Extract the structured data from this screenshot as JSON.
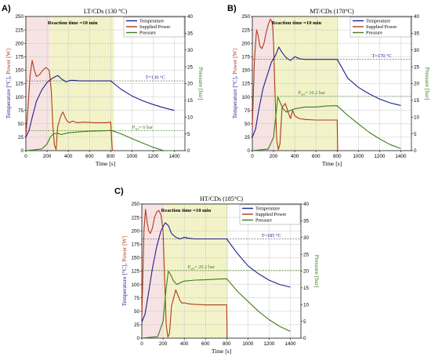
{
  "figure": {
    "panels": [
      "A)",
      "B)",
      "C)"
    ]
  },
  "chart_data": [
    {
      "id": "A",
      "type": "line",
      "title": "LT/CDs (130 °C)",
      "xlabel": "Time [s]",
      "ylabel_left": {
        "t1": "Temperature [°C], ",
        "t2": "Power [W]"
      },
      "ylabel_right": "Pressure [bar]",
      "xlim": [
        0,
        1500
      ],
      "ylim_left": [
        0,
        250
      ],
      "ylim_right": [
        0,
        40
      ],
      "xticks": [
        "0",
        "200",
        "400",
        "600",
        "800",
        "1000",
        "1200",
        "1400"
      ],
      "yticks_left": [
        "0",
        "25",
        "50",
        "75",
        "100",
        "125",
        "150",
        "175",
        "200",
        "225",
        "250"
      ],
      "yticks_right": [
        "0",
        "5",
        "10",
        "15",
        "20",
        "25",
        "30",
        "35",
        "40"
      ],
      "grid": true,
      "reaction_window": {
        "label": "Reaction time =10 min",
        "x": [
          230,
          830
        ]
      },
      "ramp_window": [
        0,
        230
      ],
      "setpoint_temperature": {
        "label": "T=130 °C",
        "value": 130
      },
      "setpoint_pressure": {
        "label_p": "P",
        "label_sub": "set",
        "label_val": "= 6 bar",
        "value_bar": 6
      },
      "legend": {
        "placement": "top-right",
        "items": [
          "Temperature",
          "Supplied Power",
          "Pressure"
        ]
      },
      "series": [
        {
          "name": "Temperature",
          "color": "#1f1f8f",
          "axis": "left",
          "x": [
            0,
            30,
            60,
            100,
            150,
            200,
            250,
            300,
            340,
            380,
            420,
            460,
            500,
            600,
            700,
            800,
            900,
            1000,
            1100,
            1200,
            1300,
            1400
          ],
          "y": [
            25,
            38,
            62,
            92,
            113,
            127,
            135,
            140,
            133,
            128,
            131,
            131,
            130,
            130,
            130,
            130,
            114,
            102,
            93,
            86,
            80,
            75
          ]
        },
        {
          "name": "Supplied Power",
          "color": "#b03a1a",
          "axis": "left",
          "x": [
            0,
            20,
            40,
            60,
            80,
            100,
            130,
            160,
            190,
            220,
            240,
            255,
            270,
            285,
            300,
            330,
            350,
            370,
            390,
            410,
            440,
            480,
            550,
            650,
            750,
            800,
            815
          ],
          "y": [
            28,
            80,
            140,
            168,
            150,
            138,
            142,
            150,
            155,
            150,
            110,
            45,
            10,
            2,
            45,
            65,
            72,
            62,
            55,
            52,
            55,
            52,
            53,
            52,
            52,
            53,
            0
          ]
        },
        {
          "name": "Pressure",
          "color": "#3d7d1a",
          "axis": "right",
          "x": [
            0,
            150,
            200,
            230,
            260,
            300,
            330,
            400,
            500,
            600,
            700,
            800,
            820,
            900,
            1000,
            1100,
            1200,
            1300,
            1400
          ],
          "y": [
            0,
            0.5,
            2,
            4,
            5,
            5.2,
            4.8,
            5.3,
            5.6,
            5.8,
            5.9,
            6,
            5.9,
            5,
            3.6,
            2.3,
            1,
            0,
            0
          ]
        }
      ]
    },
    {
      "id": "B",
      "type": "line",
      "title": "MT/CDs (170°C)",
      "xlabel": "Time [s]",
      "ylabel_left": {
        "t1": "Temperature [°C], ",
        "t2": "Power [W]"
      },
      "ylabel_right": "Pressure [bar]",
      "xlim": [
        0,
        1500
      ],
      "ylim_left": [
        0,
        250
      ],
      "ylim_right": [
        0,
        40
      ],
      "xticks": [
        "0",
        "200",
        "400",
        "600",
        "800",
        "1000",
        "1200",
        "1400"
      ],
      "yticks_left": [
        "0",
        "25",
        "50",
        "75",
        "100",
        "125",
        "150",
        "175",
        "200",
        "225",
        "250"
      ],
      "yticks_right": [
        "0",
        "5",
        "10",
        "15",
        "20",
        "25",
        "30",
        "35",
        "40"
      ],
      "grid": true,
      "reaction_window": {
        "label": "Reaction time =10 min",
        "x": [
          200,
          810
        ]
      },
      "ramp_window": [
        0,
        200
      ],
      "setpoint_temperature": {
        "label": "T=170 °C",
        "value": 170
      },
      "setpoint_pressure": {
        "label_p": "P",
        "label_sub": "set",
        "label_val": "= 16.2 bar",
        "value_bar": 16.2
      },
      "legend": {
        "placement": "top-right",
        "items": [
          "Temperature",
          "Supplied Power",
          "Pressure"
        ]
      },
      "series": [
        {
          "name": "Temperature",
          "color": "#1f1f8f",
          "axis": "left",
          "x": [
            0,
            30,
            60,
            100,
            140,
            180,
            220,
            250,
            280,
            320,
            360,
            400,
            450,
            500,
            600,
            700,
            800,
            900,
            1000,
            1100,
            1200,
            1300,
            1400
          ],
          "y": [
            25,
            40,
            75,
            115,
            140,
            165,
            178,
            193,
            183,
            173,
            168,
            175,
            171,
            170,
            170,
            170,
            170,
            135,
            118,
            106,
            96,
            89,
            84
          ]
        },
        {
          "name": "Supplied Power",
          "color": "#b03a1a",
          "axis": "left",
          "x": [
            0,
            20,
            40,
            55,
            70,
            90,
            110,
            130,
            150,
            170,
            190,
            200,
            215,
            230,
            245,
            260,
            280,
            310,
            340,
            360,
            380,
            400,
            440,
            500,
            600,
            700,
            800,
            805
          ],
          "y": [
            45,
            170,
            225,
            215,
            195,
            190,
            200,
            220,
            235,
            245,
            238,
            200,
            100,
            20,
            2,
            12,
            80,
            88,
            70,
            60,
            75,
            65,
            60,
            58,
            57,
            57,
            57,
            0
          ]
        },
        {
          "name": "Pressure",
          "color": "#3d7d1a",
          "axis": "right",
          "x": [
            0,
            150,
            200,
            220,
            240,
            260,
            290,
            320,
            360,
            400,
            500,
            600,
            700,
            800,
            820,
            900,
            1000,
            1100,
            1200,
            1300,
            1400
          ],
          "y": [
            0,
            0.5,
            4,
            10,
            16,
            14.5,
            12.5,
            11.5,
            12,
            12.5,
            13,
            13,
            13.3,
            13.4,
            12.8,
            10.5,
            8,
            5.5,
            3.5,
            1.8,
            0.6
          ]
        }
      ]
    },
    {
      "id": "C",
      "type": "line",
      "title": "HT/CDs (185°C)",
      "xlabel": "Time [s]",
      "ylabel_left": {
        "t1": "Temperature [°C], ",
        "t2": "Power [W]"
      },
      "ylabel_right": "Pressure [bar]",
      "xlim": [
        0,
        1500
      ],
      "ylim_left": [
        0,
        250
      ],
      "ylim_right": [
        0,
        40
      ],
      "xticks": [
        "0",
        "200",
        "400",
        "600",
        "800",
        "1000",
        "1200",
        "1400"
      ],
      "yticks_left": [
        "0",
        "25",
        "50",
        "75",
        "100",
        "125",
        "150",
        "175",
        "200",
        "225",
        "250"
      ],
      "yticks_right": [
        "0",
        "5",
        "10",
        "15",
        "20",
        "25",
        "30",
        "35",
        "40"
      ],
      "grid": true,
      "reaction_window": {
        "label": "Reaction time =10 min",
        "x": [
          200,
          810
        ]
      },
      "ramp_window": [
        0,
        200
      ],
      "setpoint_temperature": {
        "label": "T=185 °C",
        "value": 185
      },
      "setpoint_pressure": {
        "label_p": "P",
        "label_sub": "set",
        "label_val": "= 20.2 bar",
        "value_bar": 20.2
      },
      "legend": {
        "placement": "top-right",
        "items": [
          "Temperature",
          "Supplied Power",
          "Pressure"
        ]
      },
      "series": [
        {
          "name": "Temperature",
          "color": "#1f1f8f",
          "axis": "left",
          "x": [
            0,
            30,
            60,
            100,
            140,
            180,
            220,
            250,
            280,
            320,
            360,
            400,
            450,
            500,
            600,
            700,
            800,
            900,
            1000,
            1100,
            1200,
            1300,
            1400
          ],
          "y": [
            30,
            45,
            80,
            130,
            170,
            200,
            215,
            210,
            195,
            188,
            185,
            188,
            186,
            185,
            185,
            185,
            185,
            158,
            135,
            120,
            108,
            100,
            95
          ]
        },
        {
          "name": "Supplied Power",
          "color": "#b03a1a",
          "axis": "left",
          "x": [
            0,
            20,
            35,
            50,
            65,
            80,
            100,
            120,
            140,
            160,
            180,
            200,
            215,
            230,
            245,
            260,
            280,
            300,
            320,
            340,
            360,
            380,
            400,
            440,
            500,
            600,
            700,
            800,
            805
          ],
          "y": [
            40,
            200,
            240,
            215,
            200,
            195,
            205,
            225,
            235,
            238,
            230,
            200,
            110,
            25,
            2,
            8,
            60,
            75,
            90,
            80,
            70,
            65,
            66,
            64,
            63,
            62,
            62,
            62,
            0
          ]
        },
        {
          "name": "Pressure",
          "color": "#3d7d1a",
          "axis": "right",
          "x": [
            0,
            150,
            200,
            230,
            250,
            270,
            300,
            330,
            360,
            400,
            500,
            600,
            700,
            800,
            820,
            900,
            1000,
            1100,
            1200,
            1300,
            1400
          ],
          "y": [
            0,
            0.5,
            5,
            15,
            20,
            19,
            17,
            16,
            16.5,
            17,
            17.3,
            17.4,
            17.6,
            17.7,
            17,
            14,
            11,
            8,
            5.5,
            3.5,
            2
          ]
        }
      ]
    }
  ]
}
